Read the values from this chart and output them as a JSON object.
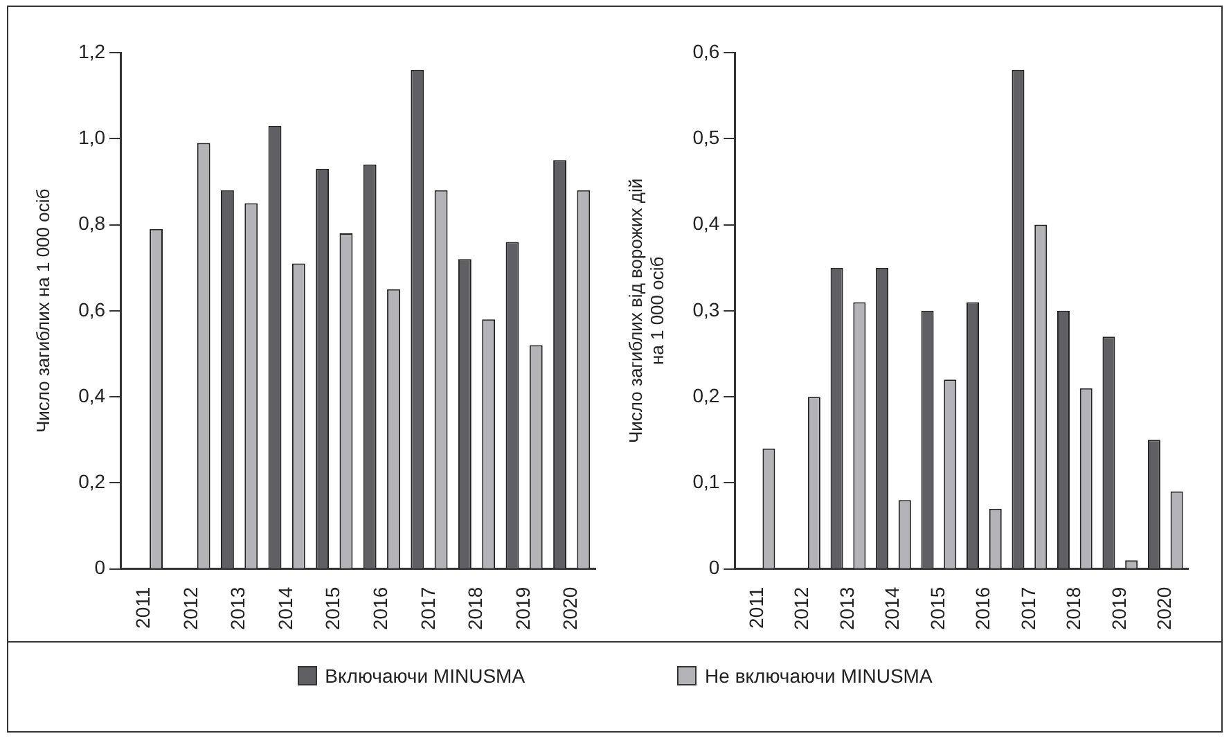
{
  "chart_data": [
    {
      "type": "bar",
      "ylabel": "Число загиблих на 1 000 осіб",
      "categories": [
        "2011",
        "2012",
        "2013",
        "2014",
        "2015",
        "2016",
        "2017",
        "2018",
        "2019",
        "2020"
      ],
      "series": [
        {
          "name": "Включаючи MINUSMA",
          "color": "#606064",
          "values": [
            null,
            null,
            0.88,
            1.03,
            0.93,
            0.94,
            1.16,
            0.72,
            0.76,
            0.95
          ]
        },
        {
          "name": "Не включаючи MINUSMA",
          "color": "#b4b4b8",
          "values": [
            0.79,
            0.99,
            0.85,
            0.71,
            0.78,
            0.65,
            0.88,
            0.58,
            0.52,
            0.88
          ]
        }
      ],
      "ylim": [
        0,
        1.2
      ],
      "yticks": [
        0,
        {
          "value": 0.2,
          "label": "0,2"
        },
        {
          "value": 0.4,
          "label": "0,4"
        },
        {
          "value": 0.6,
          "label": "0,6"
        },
        {
          "value": 0.8,
          "label": "0,8"
        },
        {
          "value": 1.0,
          "label": "1,0"
        },
        {
          "value": 1.2,
          "label": "1,2"
        }
      ],
      "grid": false,
      "legend": "bottom"
    },
    {
      "type": "bar",
      "ylabel": "Число загиблих від ворожих дій\nна 1 000 осіб",
      "categories": [
        "2011",
        "2012",
        "2013",
        "2014",
        "2015",
        "2016",
        "2017",
        "2018",
        "2019",
        "2020"
      ],
      "series": [
        {
          "color": "#606064",
          "values": [
            null,
            null,
            0.35,
            0.35,
            0.3,
            0.31,
            0.58,
            0.3,
            0.27,
            0.15
          ]
        },
        {
          "color": "#b4b4b8",
          "values": [
            0.14,
            0.2,
            0.31,
            0.08,
            0.22,
            0.07,
            0.4,
            0.21,
            0.01,
            0.09
          ]
        }
      ],
      "ylim": [
        0,
        0.6
      ],
      "yticks": [
        0,
        {
          "value": 0.1,
          "label": "0,1"
        },
        {
          "value": 0.2,
          "label": "0,2"
        },
        {
          "value": 0.3,
          "label": "0,3"
        },
        {
          "value": 0.4,
          "label": "0,4"
        },
        {
          "value": 0.5,
          "label": "0,5"
        },
        {
          "value": 0.6,
          "label": "0,6"
        }
      ],
      "grid": false
    }
  ]
}
